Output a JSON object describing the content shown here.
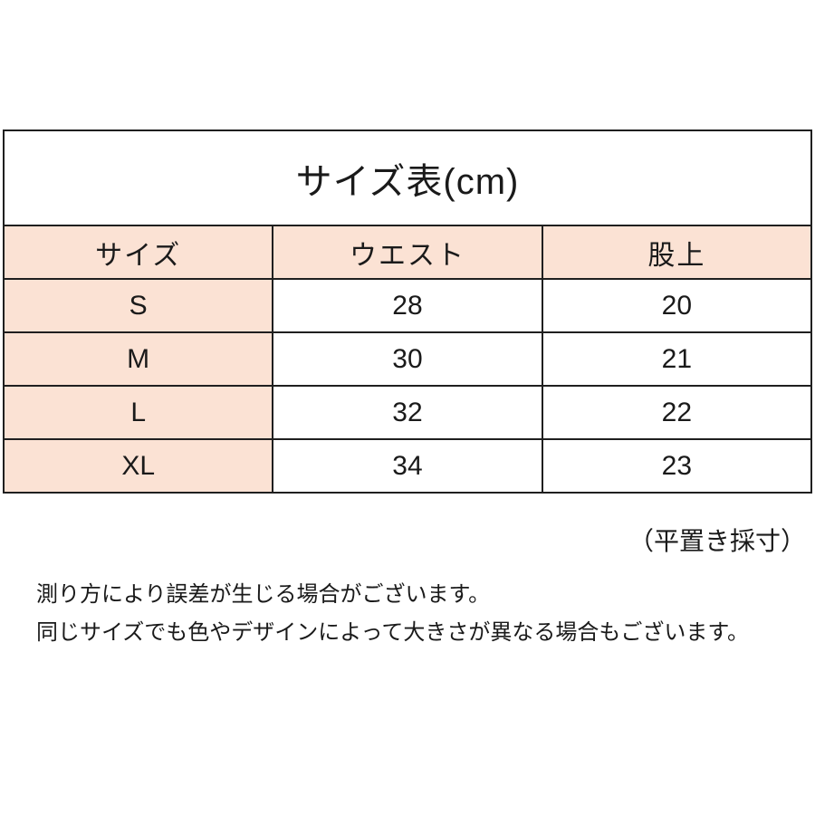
{
  "title": "サイズ表(cm)",
  "table": {
    "headers": [
      "サイズ",
      "ウエスト",
      "股上"
    ],
    "rows": [
      [
        "S",
        "28",
        "20"
      ],
      [
        "M",
        "30",
        "21"
      ],
      [
        "L",
        "32",
        "22"
      ],
      [
        "XL",
        "34",
        "23"
      ]
    ]
  },
  "measure_note": "（平置き採寸）",
  "disclaimers": [
    "測り方により誤差が生じる場合がございます。",
    "同じサイズでも色やデザインによって大きさが異なる場合もございます。"
  ],
  "colors": {
    "header_bg": "#fbe2d4",
    "border": "#1f1f1f",
    "text": "#1a1a1a",
    "background": "#ffffff"
  },
  "chart_data": {
    "type": "table",
    "title": "サイズ表(cm)",
    "unit": "cm",
    "columns": [
      "サイズ",
      "ウエスト",
      "股上"
    ],
    "rows": [
      {
        "サイズ": "S",
        "ウエスト": 28,
        "股上": 20
      },
      {
        "サイズ": "M",
        "ウエスト": 30,
        "股上": 21
      },
      {
        "サイズ": "L",
        "ウエスト": 32,
        "股上": 22
      },
      {
        "サイズ": "XL",
        "ウエスト": 34,
        "股上": 23
      }
    ],
    "notes": [
      "（平置き採寸）",
      "測り方により誤差が生じる場合がございます。",
      "同じサイズでも色やデザインによって大きさが異なる場合もございます。"
    ]
  }
}
